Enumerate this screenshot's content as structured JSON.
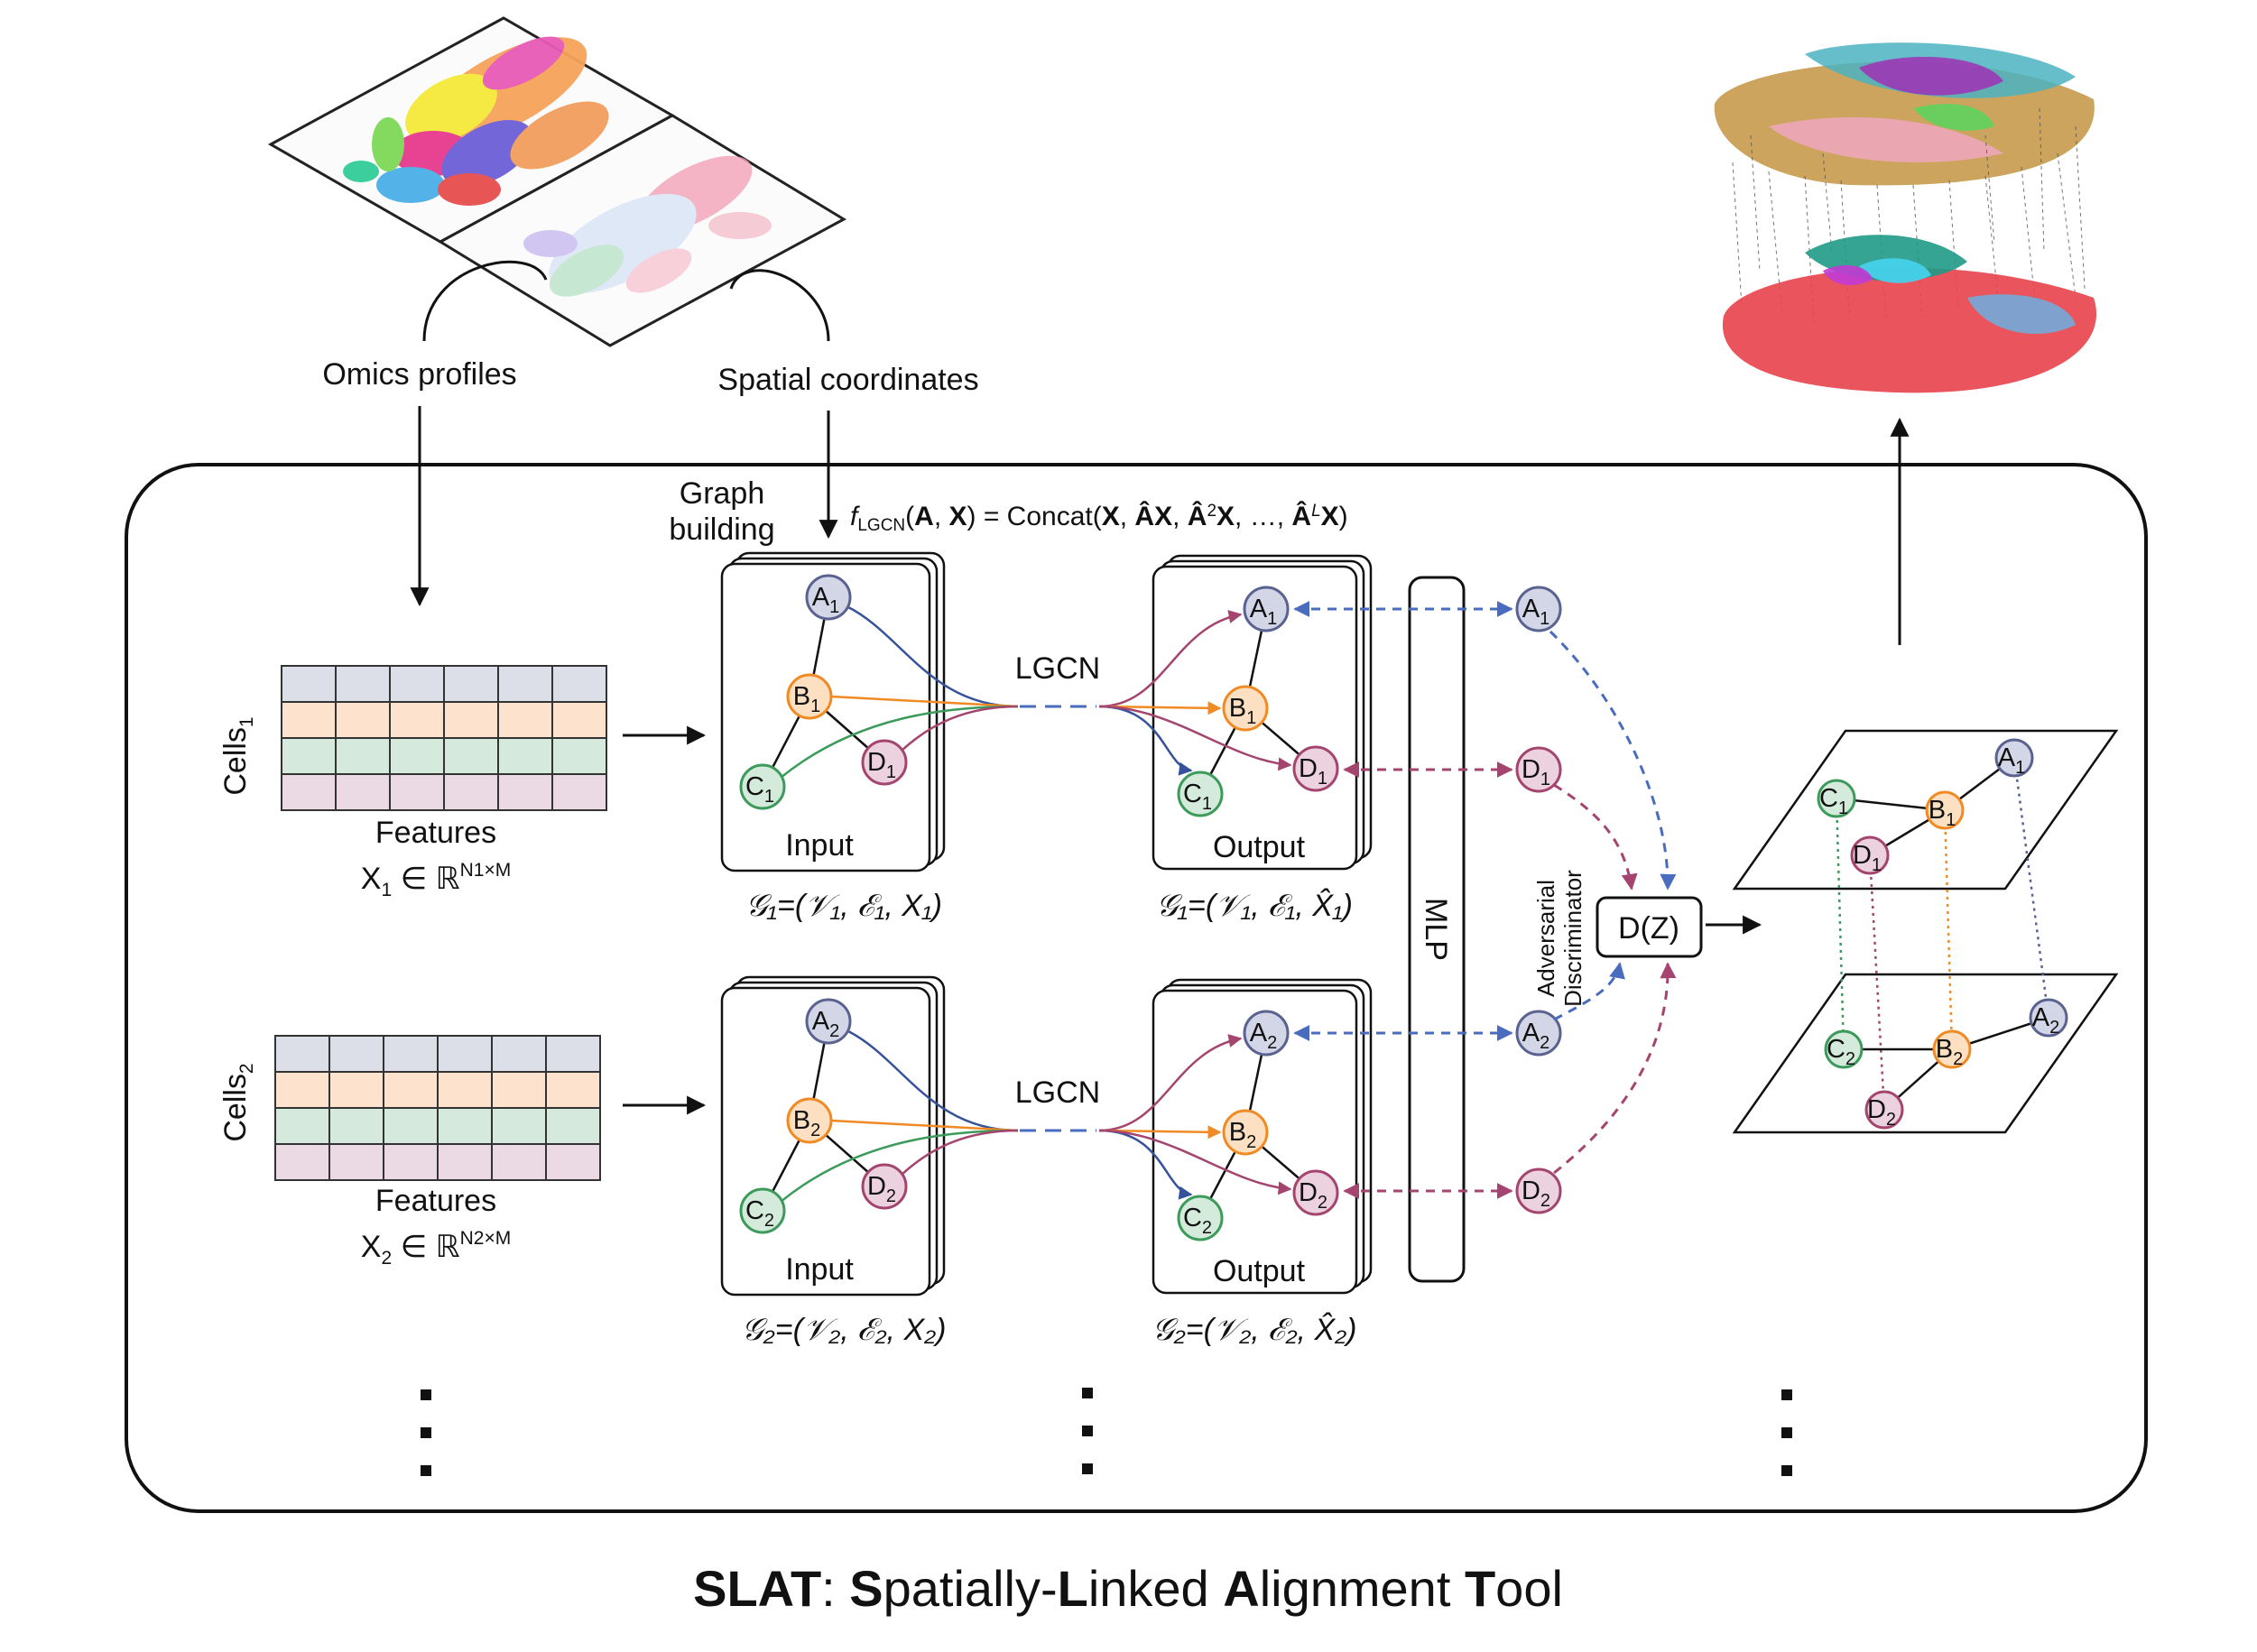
{
  "title": {
    "parts": [
      {
        "text": "SLAT",
        "bold": true
      },
      {
        "text": ": ",
        "bold": false
      },
      {
        "text": "S",
        "bold": true
      },
      {
        "text": "patially-",
        "bold": false
      },
      {
        "text": "L",
        "bold": true
      },
      {
        "text": "inked ",
        "bold": false
      },
      {
        "text": "A",
        "bold": true
      },
      {
        "text": "lignment ",
        "bold": false
      },
      {
        "text": "T",
        "bold": true
      },
      {
        "text": "ool",
        "bold": false
      }
    ]
  },
  "inputs": {
    "omics_label": "Omics profiles",
    "spatial_label": "Spatial coordinates"
  },
  "graph_building": {
    "line1": "Graph",
    "line2": "building"
  },
  "formula": "f_LGCN(A, X) = Concat(X, ÂX, Â²X, …, Â^L X)",
  "formula_parts": {
    "f": "f",
    "f_sub": "LGCN",
    "open": "(",
    "A": "A",
    "comma1": ", ",
    "X": "X",
    "mid": ") = Concat(",
    "X2": "X",
    "comma2": ", ",
    "AX": "ÂX",
    "comma3": ", ",
    "A2": "Â",
    "A2_sup": "2",
    "A2X": "X",
    "comma4": ", …, ",
    "AL": "Â",
    "AL_sup": "L",
    "ALX": "X",
    "close": ")"
  },
  "matrices": [
    {
      "cells_label": "Cells",
      "cells_sub": "1",
      "features_label": "Features",
      "x_main": "X",
      "x_sub": "1",
      "x_rest": " ∈ ℝ",
      "x_sup": "N1×M"
    },
    {
      "cells_label": "Cells",
      "cells_sub": "2",
      "features_label": "Features",
      "x_main": "X",
      "x_sub": "2",
      "x_rest": " ∈ ℝ",
      "x_sup": "N2×M"
    }
  ],
  "graphs": [
    {
      "input_label": "Input",
      "output_label": "Output",
      "lgcn_label": "LGCN",
      "nodes": [
        "A",
        "B",
        "C",
        "D"
      ],
      "index": "1",
      "input_caption": "𝒢₁=(𝒱₁, ℰ₁, X₁)",
      "output_caption": "𝒢₁=(𝒱₁, ℰ₁, X̂₁)"
    },
    {
      "input_label": "Input",
      "output_label": "Output",
      "lgcn_label": "LGCN",
      "nodes": [
        "A",
        "B",
        "C",
        "D"
      ],
      "index": "2",
      "input_caption": "𝒢₂=(𝒱₂, ℰ₂, X₂)",
      "output_caption": "𝒢₂=(𝒱₂, ℰ₂, X̂₂)"
    }
  ],
  "mlp_label": "MLP",
  "discriminator": {
    "box_label": "D(Z)",
    "side_label_1": "Adversarial",
    "side_label_2": "Discriminator"
  },
  "embedding_nodes": [
    {
      "letter": "A",
      "index": "1"
    },
    {
      "letter": "D",
      "index": "1"
    },
    {
      "letter": "A",
      "index": "2"
    },
    {
      "letter": "D",
      "index": "2"
    }
  ],
  "ellipsis": "⋮",
  "colors": {
    "A": {
      "fill": "#d3d6e6",
      "stroke": "#5a6290"
    },
    "B": {
      "fill": "#fde0c2",
      "stroke": "#f08a24"
    },
    "C": {
      "fill": "#d4ebdc",
      "stroke": "#3c9a5a"
    },
    "D": {
      "fill": "#ecd2de",
      "stroke": "#a4456f"
    },
    "row_colors": [
      "#dcdee8",
      "#fde3cd",
      "#d6e9dd",
      "#ebd9e3"
    ],
    "edge_blue": "#35529a",
    "edge_orange": "#f08a24",
    "edge_green": "#3c9a5a",
    "edge_purple": "#a4456f",
    "dash_blue": "#4a6cbf",
    "dash_purple": "#a4456f",
    "frame": "#111111"
  }
}
